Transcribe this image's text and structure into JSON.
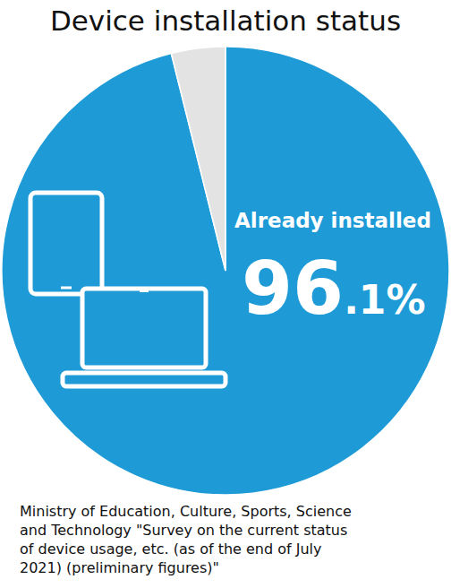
{
  "chart_data": {
    "type": "pie",
    "title": "Device installation status",
    "categories": [
      "Already installed",
      null
    ],
    "values": [
      96.1,
      3.9
    ],
    "value_labels": [
      "96.1%",
      null
    ],
    "colors": [
      "#1e9bd7",
      "#e3e3e3"
    ],
    "data_labels": true,
    "source": [
      "Ministry of Education, Culture, Sports, Science",
      "and Technology \"Survey on the current status",
      "of device usage, etc. (as of the end of July",
      "2021) (preliminary figures)\""
    ]
  }
}
